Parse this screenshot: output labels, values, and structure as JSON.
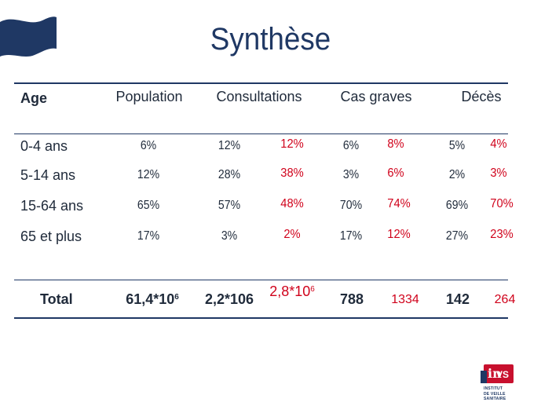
{
  "title": "Synthèse",
  "headers": {
    "age": "Age",
    "population": "Population",
    "consultations": "Consultations",
    "cas_graves": "Cas graves",
    "deces": "Décès"
  },
  "rows": [
    {
      "label": "0-4 ans",
      "population": "6%",
      "consultations": "12%",
      "consultations_red": "12%",
      "cas_graves": "6%",
      "cas_graves_red": "8%",
      "deces": "5%",
      "deces_red": "4%"
    },
    {
      "label": "5-14 ans",
      "population": "12%",
      "consultations": "28%",
      "consultations_red": "38%",
      "cas_graves": "3%",
      "cas_graves_red": "6%",
      "deces": "2%",
      "deces_red": "3%"
    },
    {
      "label": "15-64 ans",
      "population": "65%",
      "consultations": "57%",
      "consultations_red": "48%",
      "cas_graves": "70%",
      "cas_graves_red": "74%",
      "deces": "69%",
      "deces_red": "70%"
    },
    {
      "label": "65 et plus",
      "population": "17%",
      "consultations": "3%",
      "consultations_red": "2%",
      "cas_graves": "17%",
      "cas_graves_red": "12%",
      "deces": "27%",
      "deces_red": "23%"
    }
  ],
  "total": {
    "label": "Total",
    "population_base": "61,4*10",
    "population_exp": "6",
    "consultations": "2,2*106",
    "consultations_red_base": "2,8*10",
    "consultations_red_exp": "6",
    "cas_graves": "788",
    "cas_graves_red": "1334",
    "deces": "142",
    "deces_red": "264"
  },
  "logo": {
    "brand_i": "in",
    "brand_vs": "VS",
    "line1": "INSTITUT",
    "line2": "DE VEILLE SANITAIRE"
  },
  "colors": {
    "navy": "#1f3864",
    "red": "#d0021b"
  }
}
